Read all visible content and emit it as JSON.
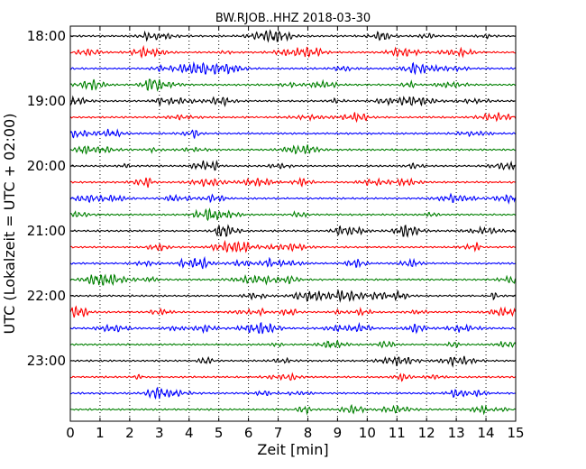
{
  "chart_data": {
    "type": "line",
    "title": "BW.RJOB..HHZ 2018-03-30",
    "xlabel": "Zeit  [min]",
    "ylabel": "UTC (Lokalzeit = UTC + 02:00)",
    "xlim": [
      0,
      15
    ],
    "x_ticks": [
      0,
      1,
      2,
      3,
      4,
      5,
      6,
      7,
      8,
      9,
      10,
      11,
      12,
      13,
      14,
      15
    ],
    "x_tick_labels": [
      "0",
      "1",
      "2",
      "3",
      "4",
      "5",
      "6",
      "7",
      "8",
      "9",
      "10",
      "11",
      "12",
      "13",
      "14",
      "15"
    ],
    "y_tick_labels": [
      "18:00",
      "19:00",
      "20:00",
      "21:00",
      "22:00",
      "23:00"
    ],
    "grid": "vertical dotted",
    "trace_colors": [
      "#000000",
      "#ff0000",
      "#0000ff",
      "#008000"
    ],
    "series": [
      {
        "start": "18:00"
      },
      {
        "start": "18:15"
      },
      {
        "start": "18:30"
      },
      {
        "start": "18:45"
      },
      {
        "start": "19:00"
      },
      {
        "start": "19:15"
      },
      {
        "start": "19:30"
      },
      {
        "start": "19:45"
      },
      {
        "start": "20:00"
      },
      {
        "start": "20:15"
      },
      {
        "start": "20:30"
      },
      {
        "start": "20:45"
      },
      {
        "start": "21:00"
      },
      {
        "start": "21:15"
      },
      {
        "start": "21:30"
      },
      {
        "start": "21:45"
      },
      {
        "start": "22:00"
      },
      {
        "start": "22:15"
      },
      {
        "start": "22:30"
      },
      {
        "start": "22:45"
      },
      {
        "start": "23:00"
      },
      {
        "start": "23:15"
      },
      {
        "start": "23:30"
      },
      {
        "start": "23:45"
      }
    ]
  }
}
